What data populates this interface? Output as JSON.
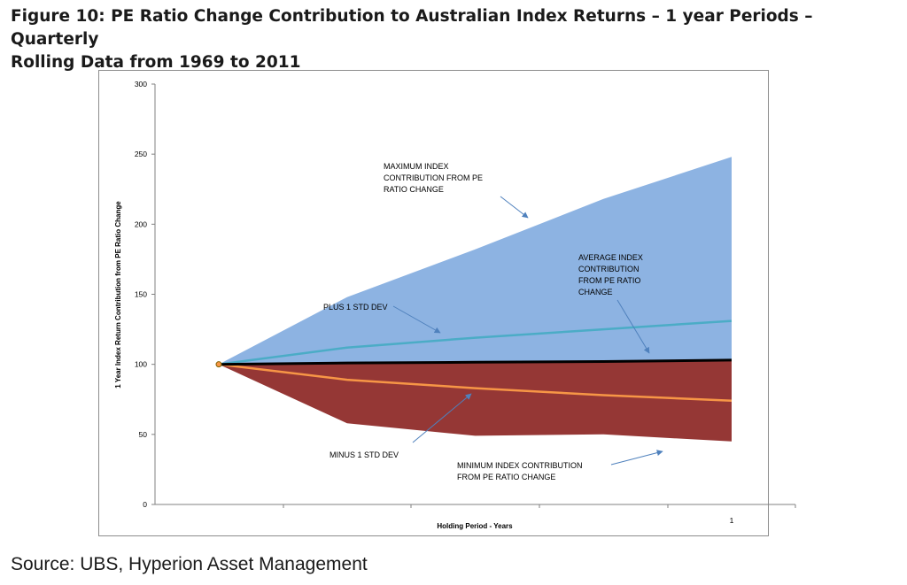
{
  "title_line1": "Figure 10: PE Ratio Change Contribution to Australian Index Returns – 1 year Periods – Quarterly",
  "title_line2": "Rolling Data from 1969 to 2011",
  "source": "Source: UBS, Hyperion Asset Management",
  "colors": {
    "max_area": "#8db3e2",
    "min_area": "#953735",
    "plus_std": "#4bacc6",
    "average": "#000000",
    "minus_std": "#f79646",
    "arrow": "#4f81bd"
  },
  "chart_data": {
    "type": "area",
    "xlabel": "Holding Period - Years",
    "ylabel": "1 Year Index Return Contribution from PE Ratio Change",
    "ylim": [
      0,
      300
    ],
    "yticks": [
      0,
      50,
      100,
      150,
      200,
      250,
      300
    ],
    "xlim": [
      0,
      1
    ],
    "x_tick_labels": [
      {
        "x": 1,
        "label": "1"
      }
    ],
    "x": [
      0,
      0.25,
      0.5,
      0.75,
      1
    ],
    "series": [
      {
        "key": "max",
        "values": [
          100,
          148,
          182,
          218,
          248
        ]
      },
      {
        "key": "plus",
        "values": [
          100,
          112,
          119,
          125,
          131
        ]
      },
      {
        "key": "avg",
        "values": [
          100,
          101,
          101.5,
          102,
          103
        ]
      },
      {
        "key": "minus",
        "values": [
          100,
          89,
          83,
          78,
          74
        ]
      },
      {
        "key": "min",
        "values": [
          100,
          58,
          49,
          50,
          45
        ]
      }
    ],
    "annotations": [
      {
        "id": "max",
        "lines": [
          "MAXIMUM INDEX",
          "CONTRIBUTION FROM PE",
          "RATIO CHANGE"
        ]
      },
      {
        "id": "plus",
        "lines": [
          "PLUS 1 STD DEV"
        ]
      },
      {
        "id": "avg",
        "lines": [
          "AVERAGE INDEX",
          "CONTRIBUTION",
          "FROM PE RATIO",
          "CHANGE"
        ]
      },
      {
        "id": "minus",
        "lines": [
          "MINUS 1 STD DEV"
        ]
      },
      {
        "id": "min",
        "lines": [
          "MINIMUM INDEX CONTRIBUTION",
          "FROM PE RATIO CHANGE"
        ]
      }
    ]
  }
}
